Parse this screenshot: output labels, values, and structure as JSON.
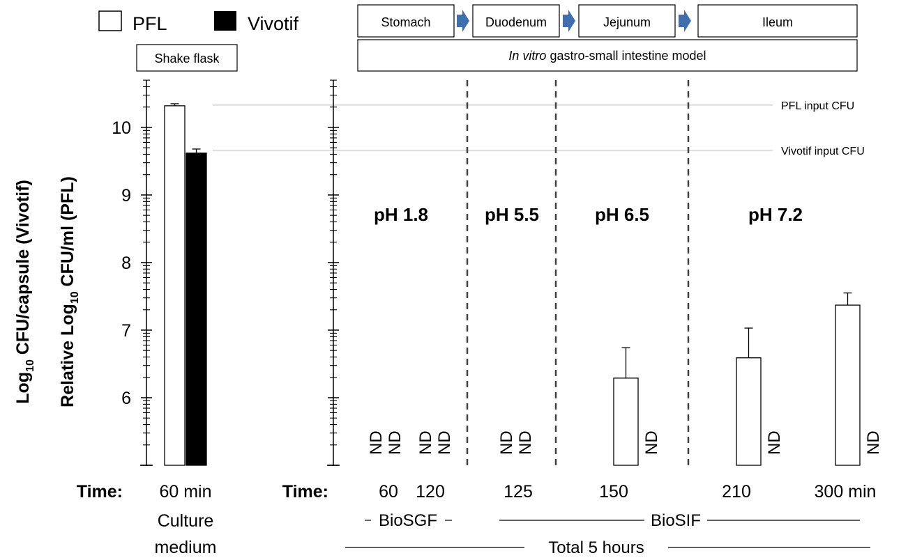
{
  "legend": {
    "entries": [
      {
        "label": "PFL",
        "fill": "#ffffff"
      },
      {
        "label": "Vivotif",
        "fill": "#000000"
      }
    ]
  },
  "header": {
    "shake_flask": "Shake flask",
    "model_prefix": "In vitro",
    "model_suffix": " gastro-small intestine model",
    "segments": [
      "Stomach",
      "Duodenum",
      "Jejunum",
      "Ileum"
    ]
  },
  "colors": {
    "arrow": "#3f6fae",
    "ref_line": "#c8c8c8",
    "divider": "#404040"
  },
  "chart_data": [
    {
      "type": "bar",
      "panel": "shake-flask",
      "ylabel_line1": "Log10 CFU/capsule (Vivotif)",
      "ylabel_line2": "Relative Log10 CFU/ml (PFL)",
      "ylim": [
        5,
        10.7
      ],
      "yticks": [
        6,
        7,
        8,
        9,
        10
      ],
      "time_prefix": "Time:",
      "categories": [
        "60 min"
      ],
      "sublabel": [
        "Culture",
        "medium"
      ],
      "series": [
        {
          "name": "PFL",
          "values": [
            10.32
          ],
          "errors": [
            0.03
          ]
        },
        {
          "name": "Vivotif",
          "values": [
            9.62
          ],
          "errors": [
            0.06
          ]
        }
      ],
      "reference_lines": [
        {
          "label": "PFL input CFU",
          "value": 10.33
        },
        {
          "label": "Vivotif input CFU",
          "value": 9.66
        }
      ]
    },
    {
      "type": "bar",
      "panel": "gastro-small-intestine-model",
      "ylim": [
        5,
        10.7
      ],
      "time_prefix": "Time:",
      "categories": [
        "60",
        "120",
        "125",
        "150",
        "210",
        "300 min"
      ],
      "series": [
        {
          "name": "PFL",
          "values": [
            null,
            null,
            null,
            6.29,
            6.59,
            7.37
          ],
          "errors": [
            null,
            null,
            null,
            0.45,
            0.44,
            0.18
          ]
        },
        {
          "name": "Vivotif",
          "values": [
            null,
            null,
            null,
            null,
            null,
            null
          ]
        }
      ],
      "not_detected_label": "ND",
      "not_detected": [
        [
          true,
          true
        ],
        [
          true,
          true
        ],
        [
          true,
          true
        ],
        [
          false,
          true
        ],
        [
          false,
          true
        ],
        [
          false,
          true
        ]
      ],
      "regions": [
        {
          "label": "pH 1.8"
        },
        {
          "label": "pH 5.5"
        },
        {
          "label": "pH 6.5"
        },
        {
          "label": "pH 7.2"
        }
      ],
      "media": [
        {
          "label": "BioSGF"
        },
        {
          "label": "BioSIF"
        }
      ],
      "total_label": "Total 5 hours"
    }
  ]
}
